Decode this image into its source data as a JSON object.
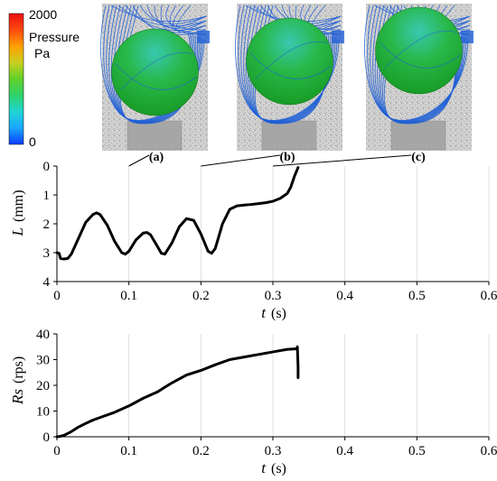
{
  "colorbar": {
    "max_label": "2000",
    "title_line1": "Pressure",
    "title_line2": "Pa",
    "min_label": "0",
    "colors": [
      "#0a3cff",
      "#1aa6ff",
      "#20d4d4",
      "#2ed36a",
      "#62d02a",
      "#c8d020",
      "#ffa000",
      "#ff4a10",
      "#e81010"
    ]
  },
  "panels": [
    {
      "label": "(a)",
      "stage": 0
    },
    {
      "label": "(b)",
      "stage": 1
    },
    {
      "label": "(c)",
      "stage": 2
    }
  ],
  "sim_colors": {
    "streamline": "#1f5fd6",
    "sphere_top": "#38c8b0",
    "sphere_mid": "#28b848",
    "sphere_low": "#169a24",
    "background": "#c8c8c8"
  },
  "chart_data": [
    {
      "type": "line",
      "xlabel": "t",
      "xunit": "(s)",
      "ylabel": "L",
      "yunit": "(mm)",
      "xlim": [
        0,
        0.6
      ],
      "ylim": [
        0,
        4
      ],
      "y_inverted": true,
      "x_ticks": [
        "0",
        "0.1",
        "0.2",
        "0.3",
        "0.4",
        "0.5",
        "0.6"
      ],
      "y_ticks": [
        "0",
        "1",
        "2",
        "3",
        "4"
      ],
      "grid": "vertical",
      "series": [
        {
          "x": [
            0,
            0.003,
            0.005,
            0.01,
            0.015,
            0.02,
            0.03,
            0.04,
            0.05,
            0.055,
            0.06,
            0.07,
            0.08,
            0.09,
            0.095,
            0.1,
            0.11,
            0.12,
            0.125,
            0.13,
            0.14,
            0.145,
            0.15,
            0.16,
            0.17,
            0.18,
            0.19,
            0.2,
            0.21,
            0.215,
            0.22,
            0.23,
            0.24,
            0.25,
            0.26,
            0.27,
            0.28,
            0.29,
            0.3,
            0.31,
            0.32,
            0.325,
            0.33,
            0.335
          ],
          "y": [
            3.0,
            3.02,
            3.2,
            3.22,
            3.2,
            3.05,
            2.5,
            1.95,
            1.68,
            1.62,
            1.68,
            2.05,
            2.6,
            3.0,
            3.05,
            2.95,
            2.55,
            2.32,
            2.3,
            2.38,
            2.8,
            3.02,
            3.05,
            2.65,
            2.1,
            1.82,
            1.88,
            2.35,
            2.95,
            3.02,
            2.85,
            2.0,
            1.5,
            1.38,
            1.35,
            1.33,
            1.3,
            1.27,
            1.22,
            1.12,
            0.95,
            0.72,
            0.35,
            0.05
          ]
        }
      ]
    },
    {
      "type": "line",
      "xlabel": "t",
      "xunit": "(s)",
      "ylabel": "Rs",
      "yunit": "(rps)",
      "xlim": [
        0,
        0.6
      ],
      "ylim": [
        0,
        40
      ],
      "x_ticks": [
        "0",
        "0.1",
        "0.2",
        "0.3",
        "0.4",
        "0.5",
        "0.6"
      ],
      "y_ticks": [
        "0",
        "10",
        "20",
        "30",
        "40"
      ],
      "grid": "vertical",
      "series": [
        {
          "x": [
            0,
            0.005,
            0.01,
            0.02,
            0.03,
            0.04,
            0.05,
            0.06,
            0.08,
            0.1,
            0.12,
            0.14,
            0.15,
            0.16,
            0.18,
            0.2,
            0.22,
            0.24,
            0.26,
            0.28,
            0.3,
            0.32,
            0.333,
            0.334,
            0.335,
            0.335
          ],
          "y": [
            0,
            0.2,
            0.6,
            2.0,
            3.8,
            5.2,
            6.5,
            7.5,
            9.5,
            12.0,
            15.0,
            17.5,
            19.3,
            21.0,
            24.0,
            25.8,
            28.0,
            30.0,
            31.0,
            32.0,
            33.0,
            34.0,
            34.2,
            35.0,
            27.0,
            23.0
          ]
        }
      ]
    }
  ]
}
